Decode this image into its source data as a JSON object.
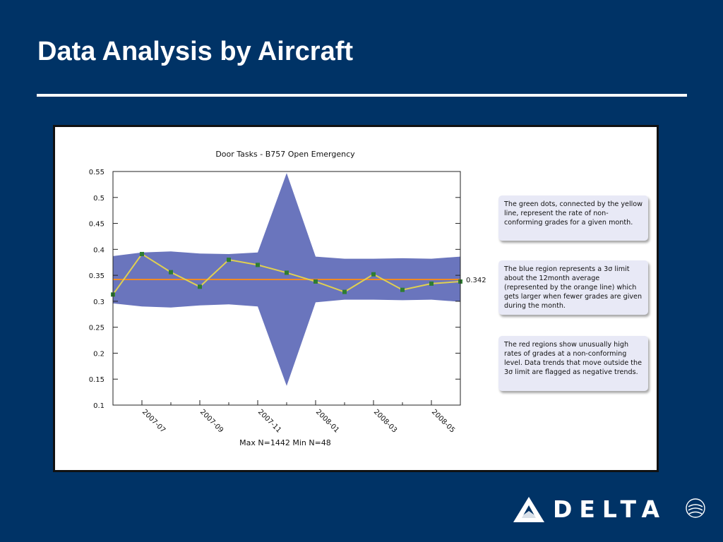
{
  "slide": {
    "title": "Data Analysis by Aircraft"
  },
  "brand": {
    "name": "DELTA",
    "alliance": "SKYTEAM"
  },
  "notes": [
    "The green dots, connected by the yellow line, represent the rate of non-conforming grades for a given month.",
    "The blue region represents a 3σ limit about the 12month average (represented by the orange line) which gets larger when fewer grades are given during the month.",
    "The red regions show unusually high rates of grades at a non-conforming level. Data trends that move outside the 3σ limit are flagged as negative trends."
  ],
  "chart_data": {
    "type": "line",
    "title": "Door Tasks - B757 Open Emergency",
    "footnote": "Max N=1442 Min N=48",
    "x": [
      "2007-06",
      "2007-07",
      "2007-08",
      "2007-09",
      "2007-10",
      "2007-11",
      "2007-12",
      "2008-01",
      "2008-02",
      "2008-03",
      "2008-04",
      "2008-05",
      "2008-06"
    ],
    "x_tick_labels": [
      "2007-07",
      "2007-09",
      "2007-11",
      "2008-01",
      "2008-03",
      "2008-05"
    ],
    "ylim": [
      0.1,
      0.55
    ],
    "yticks": [
      "0.55",
      "0.5",
      "0.45",
      "0.4",
      "0.35",
      "0.3",
      "0.25",
      "0.2",
      "0.15",
      "0.1"
    ],
    "series": [
      {
        "role": "monthly rate",
        "values": [
          0.313,
          0.391,
          0.356,
          0.328,
          0.38,
          0.37,
          0.355,
          0.338,
          0.318,
          0.352,
          0.322,
          0.334,
          0.338
        ],
        "line_color": "#e0d050",
        "marker_color": "#2e7d32"
      },
      {
        "role": "12 month average",
        "value": 0.342,
        "label": "0.342",
        "color": "#f08a24"
      },
      {
        "role": "3 sigma band",
        "upper": [
          0.387,
          0.394,
          0.396,
          0.392,
          0.391,
          0.394,
          0.547,
          0.386,
          0.382,
          0.382,
          0.383,
          0.382,
          0.386
        ],
        "lower": [
          0.296,
          0.29,
          0.288,
          0.292,
          0.294,
          0.29,
          0.137,
          0.298,
          0.303,
          0.303,
          0.302,
          0.303,
          0.299
        ],
        "color": "#6a75bd"
      }
    ],
    "grid": false
  }
}
